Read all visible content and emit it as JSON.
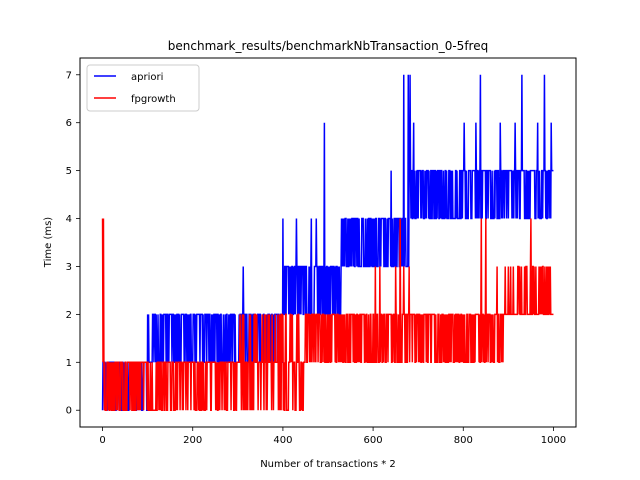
{
  "chart_data": {
    "type": "line",
    "title": "benchmark_results/benchmarkNbTransaction_0-5freq",
    "xlabel": "Number of transactions * 2",
    "ylabel": "Time (ms)",
    "xlim": [
      -50,
      1050
    ],
    "ylim": [
      -0.35,
      7.35
    ],
    "xticks": [
      0,
      200,
      400,
      600,
      800,
      1000
    ],
    "yticks": [
      0,
      1,
      2,
      3,
      4,
      5,
      6,
      7
    ],
    "grid": false,
    "legend_position": "top-left",
    "series": [
      {
        "name": "apriori",
        "color": "#0000ff",
        "segments": [
          {
            "from": 0,
            "to": 100,
            "base": 0,
            "alt": [
              1
            ],
            "density": 0.55
          },
          {
            "from": 100,
            "to": 290,
            "base": 1,
            "alt": [
              2
            ],
            "density": 0.5
          },
          {
            "from": 290,
            "to": 400,
            "base": 2,
            "alt": [
              1
            ],
            "density": 0.5
          },
          {
            "from": 400,
            "to": 530,
            "base": 3,
            "alt": [
              2
            ],
            "density": 0.5
          },
          {
            "from": 530,
            "to": 680,
            "base": 4,
            "alt": [
              3
            ],
            "density": 0.45
          },
          {
            "from": 680,
            "to": 820,
            "base": 4,
            "alt": [
              5
            ],
            "density": 0.4
          },
          {
            "from": 820,
            "to": 1000,
            "base": 5,
            "alt": [
              4
            ],
            "density": 0.35
          }
        ],
        "spikes": [
          {
            "x": 3,
            "y": 1
          },
          {
            "x": 138,
            "y": 2
          },
          {
            "x": 185,
            "y": 2
          },
          {
            "x": 218,
            "y": 2
          },
          {
            "x": 312,
            "y": 3
          },
          {
            "x": 400,
            "y": 4
          },
          {
            "x": 418,
            "y": 3
          },
          {
            "x": 430,
            "y": 4
          },
          {
            "x": 463,
            "y": 4
          },
          {
            "x": 474,
            "y": 4
          },
          {
            "x": 492,
            "y": 6
          },
          {
            "x": 540,
            "y": 4
          },
          {
            "x": 565,
            "y": 4
          },
          {
            "x": 640,
            "y": 5
          },
          {
            "x": 668,
            "y": 7
          },
          {
            "x": 678,
            "y": 7
          },
          {
            "x": 682,
            "y": 7
          },
          {
            "x": 690,
            "y": 6
          },
          {
            "x": 802,
            "y": 6
          },
          {
            "x": 828,
            "y": 6
          },
          {
            "x": 838,
            "y": 7
          },
          {
            "x": 882,
            "y": 6
          },
          {
            "x": 915,
            "y": 6
          },
          {
            "x": 930,
            "y": 7
          },
          {
            "x": 965,
            "y": 6
          },
          {
            "x": 980,
            "y": 7
          },
          {
            "x": 995,
            "y": 6
          }
        ]
      },
      {
        "name": "fpgrowth",
        "color": "#ff0000",
        "segments": [
          {
            "from": 0,
            "to": 120,
            "base": 0,
            "alt": [
              1
            ],
            "density": 0.55
          },
          {
            "from": 120,
            "to": 300,
            "base": 0,
            "alt": [
              1
            ],
            "density": 0.6
          },
          {
            "from": 300,
            "to": 450,
            "base": 1,
            "alt": [
              0,
              2
            ],
            "density": 0.45
          },
          {
            "from": 450,
            "to": 590,
            "base": 1,
            "alt": [
              2
            ],
            "density": 0.5
          },
          {
            "from": 590,
            "to": 700,
            "base": 2,
            "alt": [
              1
            ],
            "density": 0.5
          },
          {
            "from": 700,
            "to": 890,
            "base": 2,
            "alt": [
              1
            ],
            "density": 0.45
          },
          {
            "from": 890,
            "to": 1000,
            "base": 2,
            "alt": [
              3
            ],
            "density": 0.3
          }
        ],
        "spikes": [
          {
            "x": 0,
            "y": 4
          },
          {
            "x": 2,
            "y": 4
          },
          {
            "x": 605,
            "y": 3
          },
          {
            "x": 615,
            "y": 3
          },
          {
            "x": 650,
            "y": 3
          },
          {
            "x": 660,
            "y": 4
          },
          {
            "x": 668,
            "y": 3
          },
          {
            "x": 680,
            "y": 3
          },
          {
            "x": 840,
            "y": 4
          },
          {
            "x": 850,
            "y": 4
          },
          {
            "x": 875,
            "y": 3
          },
          {
            "x": 905,
            "y": 3
          },
          {
            "x": 950,
            "y": 4
          },
          {
            "x": 968,
            "y": 3
          },
          {
            "x": 985,
            "y": 3
          },
          {
            "x": 993,
            "y": 3
          }
        ]
      }
    ]
  }
}
